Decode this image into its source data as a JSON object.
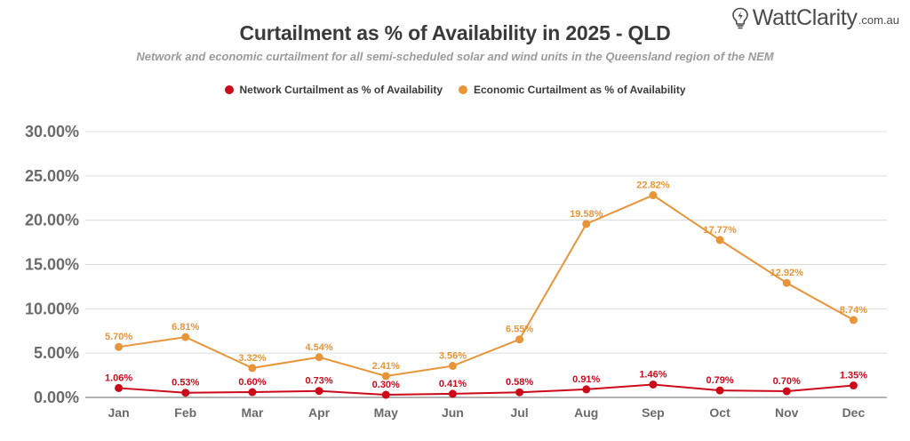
{
  "logo": {
    "brand": "WattClarity",
    "registered": "®",
    "suffix": ".com.au",
    "icon": "lightbulb-bolt-icon"
  },
  "chart_data": {
    "type": "line",
    "title": "Curtailment as % of Availability in 2025 - QLD",
    "subtitle": "Network and economic curtailment for all semi-scheduled solar and wind units in the Queensland region of the NEM",
    "xlabel": "",
    "ylabel": "",
    "categories": [
      "Jan",
      "Feb",
      "Mar",
      "Apr",
      "May",
      "Jun",
      "Jul",
      "Aug",
      "Sep",
      "Oct",
      "Nov",
      "Dec"
    ],
    "ylim": [
      0,
      30
    ],
    "yticks": [
      0,
      5,
      10,
      15,
      20,
      25,
      30
    ],
    "ytick_labels": [
      "0.00%",
      "5.00%",
      "10.00%",
      "15.00%",
      "20.00%",
      "25.00%",
      "30.00%"
    ],
    "grid": true,
    "legend_position": "top-center",
    "series": [
      {
        "name": "Network Curtailment as % of Availability",
        "color": "#CC0A1A",
        "values": [
          1.06,
          0.53,
          0.6,
          0.73,
          0.3,
          0.41,
          0.58,
          0.91,
          1.46,
          0.79,
          0.7,
          1.35
        ],
        "labels": [
          "1.06%",
          "0.53%",
          "0.60%",
          "0.73%",
          "0.30%",
          "0.41%",
          "0.58%",
          "0.91%",
          "1.46%",
          "0.79%",
          "0.70%",
          "1.35%"
        ]
      },
      {
        "name": "Economic Curtailment as % of Availability",
        "color": "#E8953A",
        "values": [
          5.7,
          6.81,
          3.32,
          4.54,
          2.41,
          3.56,
          6.55,
          19.58,
          22.82,
          17.77,
          12.92,
          8.74
        ],
        "labels": [
          "5.70%",
          "6.81%",
          "3.32%",
          "4.54%",
          "2.41%",
          "3.56%",
          "6.55%",
          "19.58%",
          "22.82%",
          "17.77%",
          "12.92%",
          "8.74%"
        ]
      }
    ]
  }
}
